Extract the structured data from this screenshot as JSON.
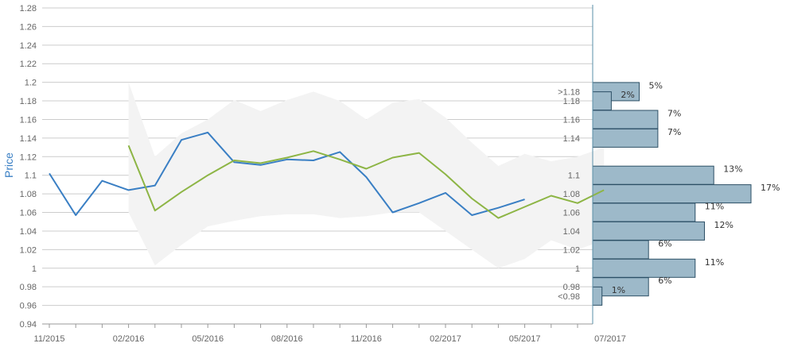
{
  "chart_data": {
    "type": "line",
    "ylabel": "Price",
    "ylim": [
      0.94,
      1.28
    ],
    "y_ticks": [
      "0.94",
      "0.96",
      "0.98",
      "1",
      "1.02",
      "1.04",
      "1.06",
      "1.08",
      "1.1",
      "1.12",
      "1.14",
      "1.16",
      "1.18",
      "1.2",
      "1.22",
      "1.24",
      "1.26",
      "1.28"
    ],
    "x_tick_labels": [
      "11/2015",
      "02/2016",
      "05/2016",
      "08/2016",
      "11/2016",
      "02/2017",
      "05/2017",
      "07/2017"
    ],
    "grid": true,
    "colors": {
      "actual": "#3a7fc4",
      "forecast": "#8db545",
      "band": "#f3f3f3",
      "bars": "#9db9c9",
      "bar_stroke": "#2d5066",
      "axis": "#5a8fa8"
    },
    "series": [
      {
        "name": "",
        "color": "#3a7fc4",
        "x": [
          "2015-11",
          "2015-12",
          "2016-01",
          "2016-02",
          "2016-03",
          "2016-04",
          "2016-05",
          "2016-06",
          "2016-07",
          "2016-08",
          "2016-09",
          "2016-10",
          "2016-11",
          "2016-12",
          "2017-01",
          "2017-02",
          "2017-03",
          "2017-04",
          "2017-05"
        ],
        "values": [
          1.102,
          1.057,
          1.094,
          1.084,
          1.089,
          1.138,
          1.146,
          1.114,
          1.111,
          1.117,
          1.116,
          1.125,
          1.098,
          1.06,
          1.07,
          1.081,
          1.057,
          1.065,
          1.074
        ]
      },
      {
        "name": "",
        "color": "#8db545",
        "x": [
          "2016-02",
          "2016-03",
          "2016-04",
          "2016-05",
          "2016-06",
          "2016-07",
          "2016-08",
          "2016-09",
          "2016-10",
          "2016-11",
          "2016-12",
          "2017-01",
          "2017-02",
          "2017-03",
          "2017-04",
          "2017-05",
          "2017-06",
          "2017-07",
          "2017-08"
        ],
        "values": [
          1.132,
          1.062,
          1.082,
          1.1,
          1.116,
          1.113,
          1.119,
          1.126,
          1.117,
          1.107,
          1.119,
          1.124,
          1.101,
          1.075,
          1.054,
          1.066,
          1.078,
          1.07,
          1.084
        ]
      }
    ],
    "band": {
      "x": [
        "2016-02",
        "2016-03",
        "2016-04",
        "2016-05",
        "2016-06",
        "2016-07",
        "2016-08",
        "2016-09",
        "2016-10",
        "2016-11",
        "2016-12",
        "2017-01",
        "2017-02",
        "2017-03",
        "2017-04",
        "2017-05",
        "2017-06",
        "2017-07",
        "2017-08"
      ],
      "upper": [
        1.2,
        1.12,
        1.145,
        1.16,
        1.181,
        1.169,
        1.181,
        1.19,
        1.18,
        1.16,
        1.178,
        1.182,
        1.162,
        1.135,
        1.11,
        1.123,
        1.115,
        1.12,
        1.13
      ],
      "lower": [
        1.06,
        1.003,
        1.025,
        1.045,
        1.051,
        1.056,
        1.058,
        1.058,
        1.054,
        1.056,
        1.06,
        1.06,
        1.04,
        1.02,
        1.0,
        1.01,
        1.03,
        1.02,
        1.03
      ]
    },
    "distribution": {
      "type": "bar",
      "categories": [
        ">1.18",
        "1.18",
        "1.16",
        "1.14",
        "1.1",
        "1.08",
        "1.06",
        "1.04",
        "1.02",
        "1",
        "0.98",
        "<0.98"
      ],
      "values": [
        5,
        2,
        7,
        7,
        13,
        17,
        11,
        12,
        6,
        11,
        6,
        1
      ],
      "labels": [
        "5%",
        "2%",
        "7%",
        "7%",
        "13%",
        "17%",
        "11%",
        "12%",
        "6%",
        "11%",
        "6%",
        "1%"
      ]
    }
  }
}
